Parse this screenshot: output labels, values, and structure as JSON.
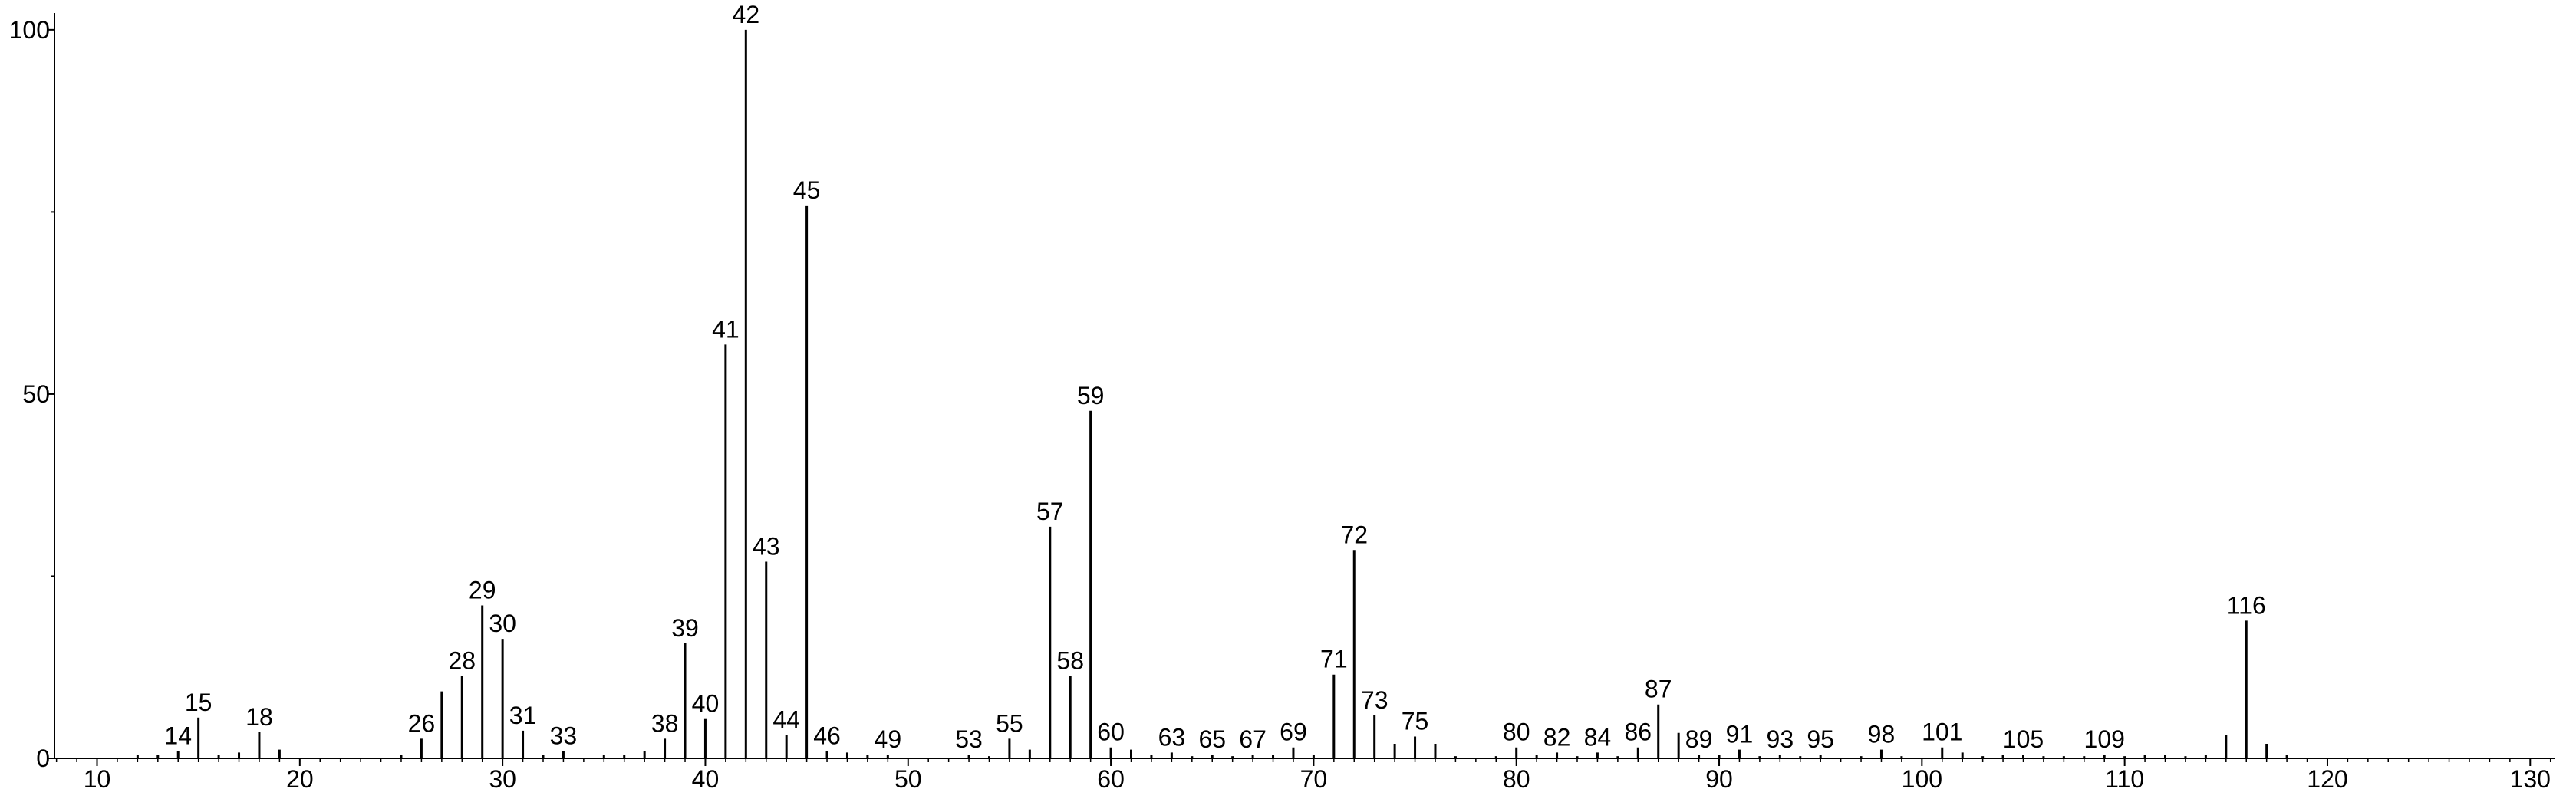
{
  "chart_data": {
    "type": "spectrum",
    "x": [
      12,
      13,
      14,
      15,
      16,
      17,
      18,
      19,
      25,
      26,
      27,
      28,
      29,
      30,
      31,
      32,
      33,
      35,
      36,
      37,
      38,
      39,
      40,
      41,
      42,
      43,
      44,
      45,
      46,
      47,
      48,
      49,
      53,
      54,
      55,
      56,
      57,
      58,
      59,
      60,
      61,
      62,
      63,
      64,
      65,
      66,
      67,
      68,
      69,
      70,
      71,
      72,
      73,
      74,
      75,
      76,
      77,
      79,
      80,
      81,
      82,
      83,
      84,
      85,
      86,
      87,
      88,
      89,
      90,
      91,
      92,
      93,
      94,
      95,
      97,
      98,
      99,
      101,
      102,
      103,
      104,
      105,
      106,
      107,
      108,
      109,
      110,
      111,
      112,
      113,
      114,
      115,
      116,
      117,
      118
    ],
    "values": [
      0.5,
      0.5,
      1,
      5.6,
      0.5,
      0.8,
      3.6,
      1.2,
      0.5,
      2.7,
      9.2,
      11.3,
      21,
      16.4,
      3.8,
      0.5,
      1,
      0.5,
      0.5,
      1,
      2.7,
      15.8,
      5.4,
      56.8,
      100,
      27,
      3.2,
      75.9,
      1,
      0.8,
      0.5,
      0.5,
      0.5,
      0.3,
      2.7,
      1.2,
      31.8,
      11.3,
      47.7,
      1.5,
      1.2,
      0.5,
      0.8,
      0.3,
      0.5,
      0.3,
      0.5,
      0.5,
      1.5,
      0.5,
      11.5,
      28.6,
      5.9,
      2,
      3,
      2,
      0.3,
      0.3,
      1.5,
      0.5,
      0.8,
      0.3,
      0.8,
      0.3,
      1.5,
      7.4,
      3.5,
      0.5,
      0.5,
      1.2,
      0.3,
      0.5,
      0.3,
      0.5,
      0.3,
      1.2,
      0.3,
      1.5,
      0.8,
      0.3,
      0.5,
      0.5,
      0.3,
      0.3,
      0.3,
      0.5,
      0.3,
      0.5,
      0.5,
      0.3,
      0.5,
      3.2,
      18.9,
      2,
      0.5
    ],
    "labeled": [
      false,
      false,
      true,
      true,
      false,
      false,
      true,
      false,
      false,
      true,
      false,
      true,
      true,
      true,
      true,
      false,
      true,
      false,
      false,
      false,
      true,
      true,
      true,
      true,
      true,
      true,
      true,
      true,
      true,
      false,
      false,
      true,
      true,
      false,
      true,
      false,
      true,
      true,
      true,
      true,
      false,
      false,
      true,
      false,
      true,
      false,
      true,
      false,
      true,
      false,
      true,
      true,
      true,
      false,
      true,
      false,
      false,
      false,
      true,
      false,
      true,
      false,
      true,
      false,
      true,
      true,
      false,
      true,
      false,
      true,
      false,
      true,
      false,
      true,
      false,
      true,
      false,
      true,
      false,
      false,
      false,
      true,
      false,
      false,
      false,
      true,
      false,
      false,
      false,
      false,
      false,
      false,
      true,
      false,
      false
    ],
    "color": "#000000",
    "xlim": [
      7.9,
      131.2
    ],
    "xticks": [
      10,
      20,
      30,
      40,
      50,
      60,
      70,
      80,
      90,
      100,
      110,
      120,
      130
    ],
    "xminor_step": 1,
    "ylim": [
      0,
      102.3
    ],
    "yticks": [
      0,
      50,
      100
    ],
    "yminor": [
      25,
      75
    ]
  }
}
